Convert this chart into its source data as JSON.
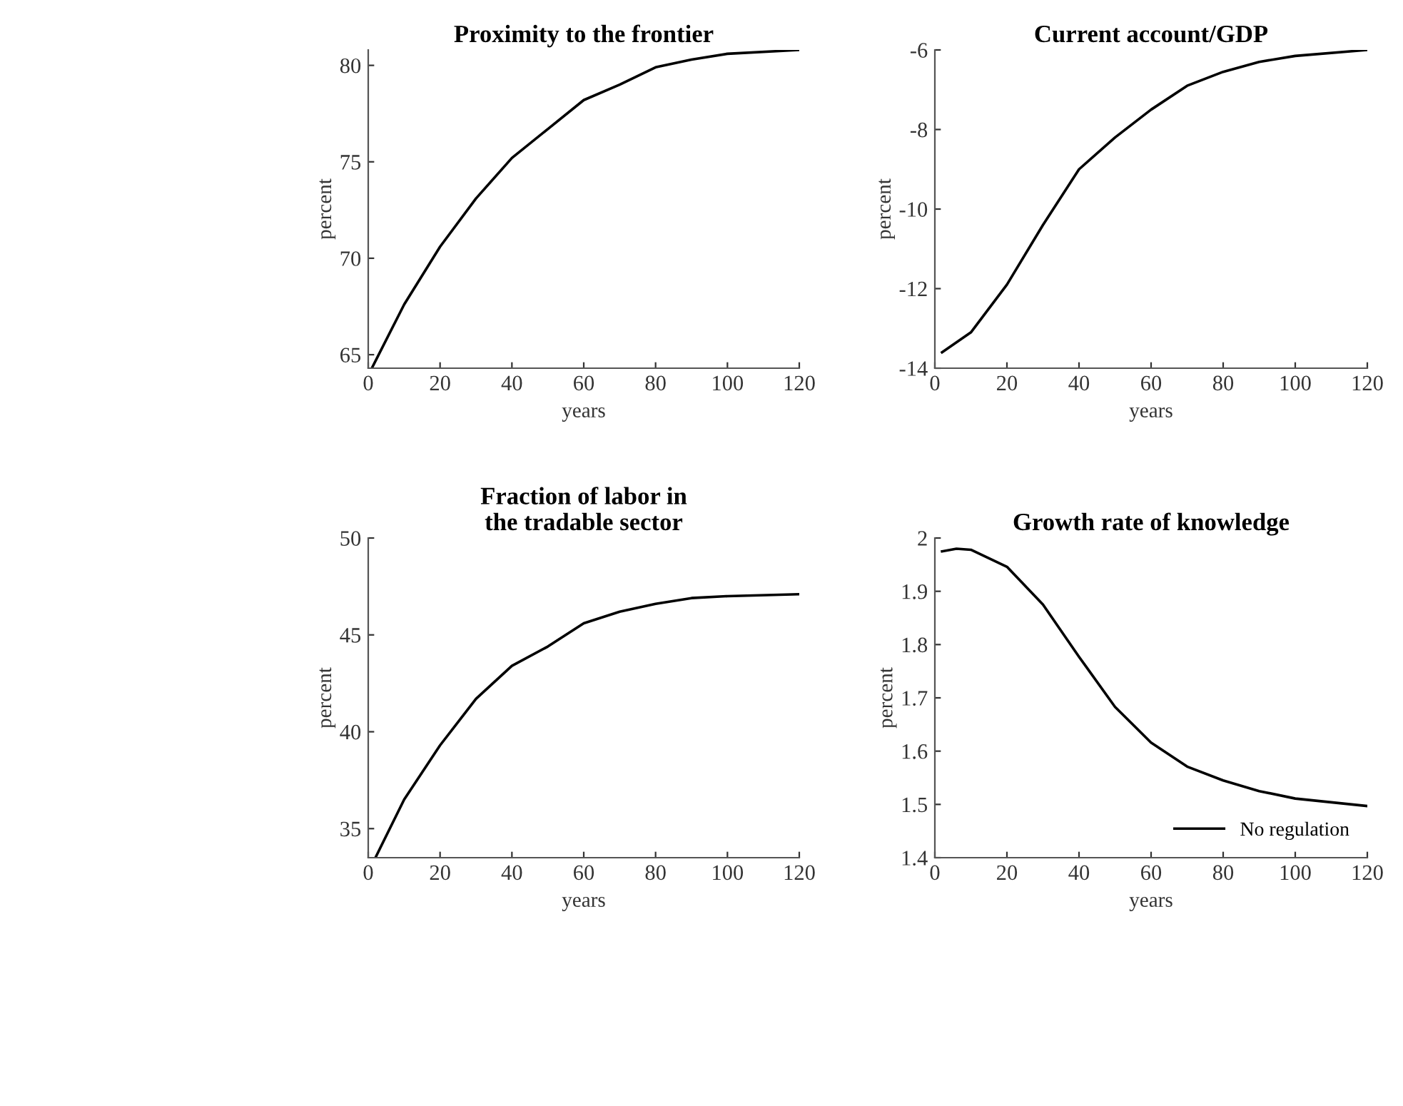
{
  "chart_data": [
    {
      "type": "line",
      "title": "Proximity to the frontier",
      "xlabel": "years",
      "ylabel": "percent",
      "xlim": [
        0,
        120
      ],
      "xticks": [
        0,
        20,
        40,
        60,
        80,
        100,
        120
      ],
      "ylim": [
        64.3,
        80.8
      ],
      "yticks": [
        65,
        70,
        75,
        80
      ],
      "grid": false,
      "legend": false,
      "series": [
        {
          "color": "#000000",
          "x": [
            1,
            10,
            20,
            30,
            40,
            50,
            60,
            70,
            80,
            90,
            100,
            120
          ],
          "values": [
            64.3,
            67.6,
            70.6,
            73.1,
            75.2,
            76.7,
            78.2,
            79.0,
            79.9,
            80.3,
            80.6,
            80.8
          ]
        }
      ]
    },
    {
      "type": "line",
      "title": "Current account/GDP",
      "xlabel": "years",
      "ylabel": "percent",
      "xlim": [
        0,
        120
      ],
      "xticks": [
        0,
        20,
        40,
        60,
        80,
        100,
        120
      ],
      "ylim": [
        -14,
        -6
      ],
      "yticks": [
        -14,
        -12,
        -10,
        -8,
        -6
      ],
      "grid": false,
      "legend": false,
      "series": [
        {
          "color": "#000000",
          "x": [
            2,
            10,
            20,
            30,
            40,
            50,
            60,
            70,
            80,
            90,
            100,
            120
          ],
          "values": [
            -13.6,
            -13.1,
            -11.9,
            -10.4,
            -9.0,
            -8.2,
            -7.5,
            -6.9,
            -6.55,
            -6.3,
            -6.15,
            -6.0
          ]
        }
      ]
    },
    {
      "type": "line",
      "title": "Fraction of labor in\nthe tradable sector",
      "xlabel": "years",
      "ylabel": "percent",
      "xlim": [
        0,
        120
      ],
      "xticks": [
        0,
        20,
        40,
        60,
        80,
        100,
        120
      ],
      "ylim": [
        33.5,
        50
      ],
      "yticks": [
        35,
        40,
        45,
        50
      ],
      "grid": false,
      "legend": false,
      "series": [
        {
          "color": "#000000",
          "x": [
            2,
            10,
            20,
            30,
            40,
            50,
            60,
            70,
            80,
            90,
            100,
            120
          ],
          "values": [
            33.5,
            36.5,
            39.3,
            41.7,
            43.4,
            44.4,
            45.6,
            46.2,
            46.6,
            46.9,
            47.0,
            47.1
          ]
        }
      ]
    },
    {
      "type": "line",
      "title": "Growth rate of knowledge",
      "xlabel": "years",
      "ylabel": "percent",
      "xlim": [
        0,
        120
      ],
      "xticks": [
        0,
        20,
        40,
        60,
        80,
        100,
        120
      ],
      "ylim": [
        1.4,
        2.0
      ],
      "yticks": [
        1.4,
        1.5,
        1.6,
        1.7,
        1.8,
        1.9,
        2
      ],
      "grid": false,
      "legend": "bottom right",
      "series": [
        {
          "name": "No regulation",
          "color": "#000000",
          "x": [
            2,
            6,
            10,
            20,
            30,
            40,
            50,
            60,
            70,
            80,
            90,
            100,
            120
          ],
          "values": [
            1.975,
            1.98,
            1.978,
            1.946,
            1.875,
            1.777,
            1.683,
            1.616,
            1.571,
            1.545,
            1.525,
            1.511,
            1.497
          ]
        }
      ]
    }
  ]
}
